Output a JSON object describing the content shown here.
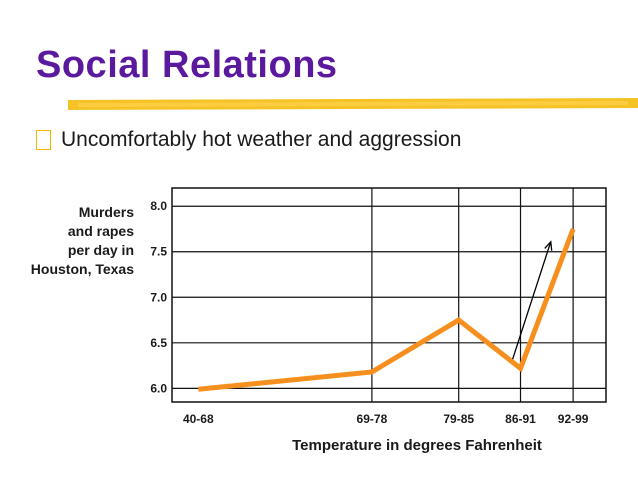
{
  "slide": {
    "title": "Social Relations",
    "bullet": "Uncomfortably hot weather and aggression",
    "colors": {
      "title": "#5b1a9e",
      "underline": "#f5b800",
      "line": "#f78f1e"
    }
  },
  "chart_data": {
    "type": "line",
    "title": "",
    "ylabel": "Murders\nand rapes\nper day in\nHouston, Texas",
    "xlabel": "Temperature in degrees Fahrenheit",
    "categories": [
      "40-68",
      "69-78",
      "79-85",
      "86-91",
      "92-99"
    ],
    "category_positions": [
      0,
      13.2,
      19.8,
      24.5,
      28.5
    ],
    "x_range": [
      -2,
      31
    ],
    "values": [
      5.99,
      6.18,
      6.75,
      6.22,
      7.75
    ],
    "y_ticks": [
      "6.0",
      "6.5",
      "7.0",
      "7.5",
      "8.0"
    ],
    "ylim": [
      5.85,
      8.2
    ],
    "grid": true,
    "annotation": {
      "type": "arrow",
      "from": [
        23.9,
        6.32
      ],
      "to": [
        26.8,
        7.61
      ]
    }
  }
}
